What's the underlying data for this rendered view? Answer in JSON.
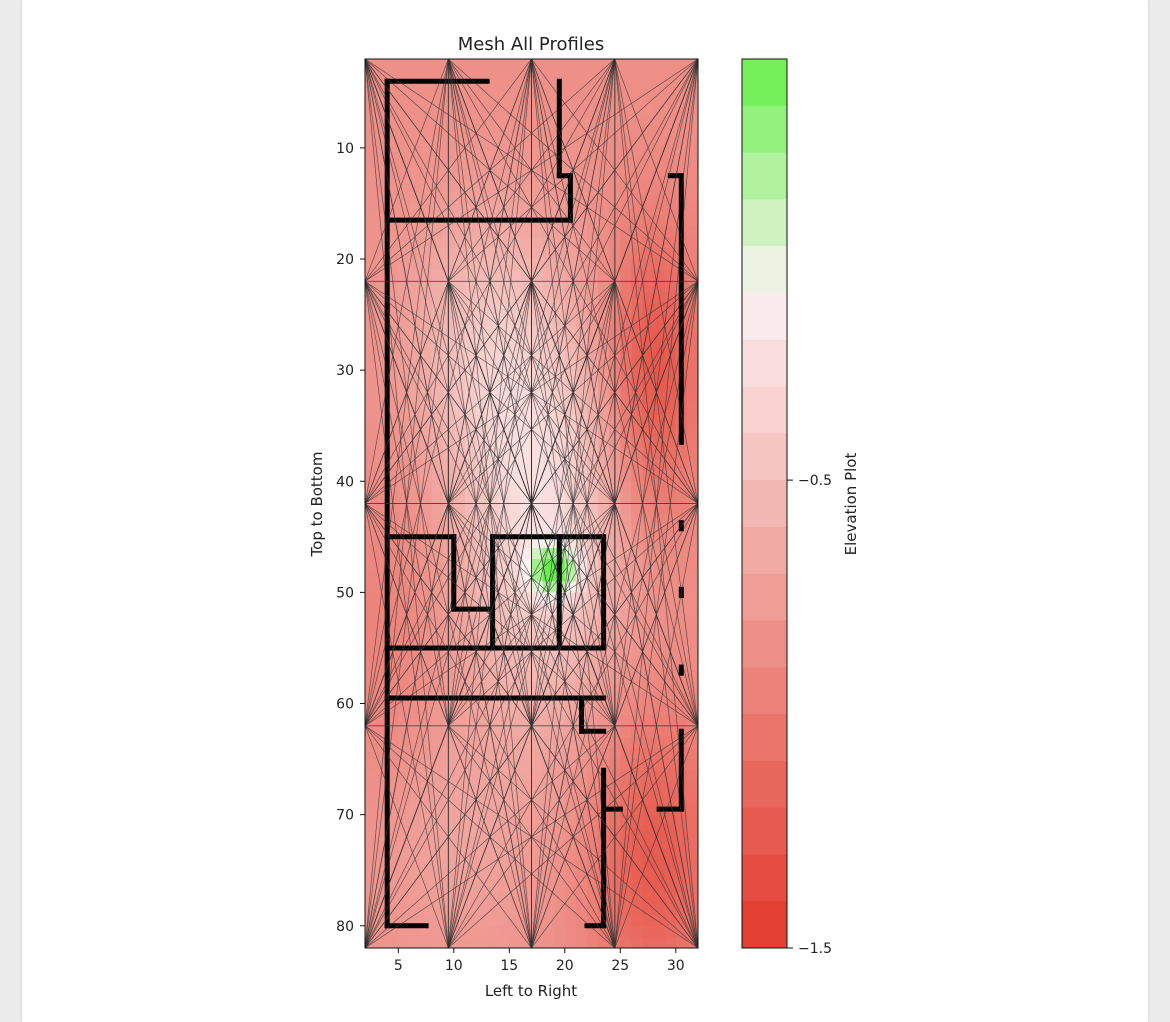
{
  "chart_data": [
    {
      "type": "heatmap",
      "title": "Mesh All Profiles",
      "xlabel": "Left to Right",
      "ylabel": "Top to Bottom",
      "xlim": [
        2,
        32
      ],
      "ylim": [
        82,
        2
      ],
      "xticks": [
        5,
        10,
        15,
        20,
        25,
        30
      ],
      "yticks": [
        10,
        20,
        30,
        40,
        50,
        60,
        70,
        80
      ],
      "grid": false,
      "mesh_rows_y": [
        2,
        22,
        42,
        62,
        82
      ],
      "mesh_cols_x": [
        2,
        9.5,
        17,
        24.5,
        32
      ],
      "colorbar": {
        "label": "Elevation Plot",
        "ticks": [
          -0.5,
          -1.5
        ],
        "tick_labels": [
          "−0.5",
          "−1.5"
        ],
        "range": [
          -1.5,
          0.4
        ],
        "colors": {
          "low": "#e3392b",
          "mid": "#fbf3f3",
          "high": "#66f04a"
        }
      },
      "elevation_field": {
        "base": -0.85,
        "bumps": [
          {
            "x": 18,
            "y": 44,
            "sx": 5,
            "sy": 12,
            "a": 0.55
          },
          {
            "x": 13,
            "y": 28,
            "sx": 5,
            "sy": 9,
            "a": 0.35
          },
          {
            "x": 28,
            "y": 30,
            "sx": 3,
            "sy": 9,
            "a": -0.45
          },
          {
            "x": 28,
            "y": 74,
            "sx": 4,
            "sy": 9,
            "a": -0.4
          },
          {
            "x": 4,
            "y": 55,
            "sx": 3,
            "sy": 12,
            "a": -0.1
          },
          {
            "x": 10,
            "y": 72,
            "sx": 6,
            "sy": 8,
            "a": 0.15
          },
          {
            "x": 19,
            "y": 48,
            "sx": 1.5,
            "sy": 1.5,
            "a": 0.9
          }
        ]
      }
    }
  ]
}
